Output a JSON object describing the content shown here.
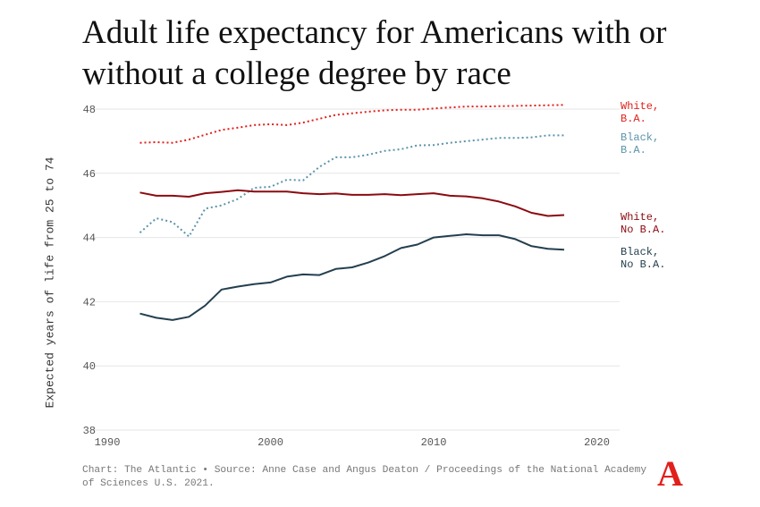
{
  "chart_data": {
    "type": "line",
    "title": "Adult life expectancy for Americans with or without a college degree by race",
    "xlabel": "",
    "ylabel": "Expected years of life from 25 to 74",
    "xlim": [
      1988,
      2021.5
    ],
    "ylim": [
      38,
      48
    ],
    "xticks": [
      1990,
      2000,
      2010,
      2020
    ],
    "yticks": [
      38,
      40,
      42,
      44,
      46,
      48
    ],
    "grid": true,
    "legend": "direct labels at right",
    "x": [
      1992,
      1993,
      1994,
      1995,
      1996,
      1997,
      1998,
      1999,
      2000,
      2001,
      2002,
      2003,
      2004,
      2005,
      2006,
      2007,
      2008,
      2009,
      2010,
      2011,
      2012,
      2013,
      2014,
      2015,
      2016,
      2017,
      2018
    ],
    "series": [
      {
        "name": "White, B.A.",
        "label_lines": [
          "White,",
          "B.A."
        ],
        "color": "#e0201c",
        "style": "dotted",
        "values": [
          46.95,
          46.97,
          46.95,
          47.05,
          47.2,
          47.35,
          47.42,
          47.5,
          47.53,
          47.5,
          47.58,
          47.7,
          47.82,
          47.87,
          47.92,
          47.96,
          47.98,
          47.98,
          48.02,
          48.05,
          48.08,
          48.08,
          48.09,
          48.1,
          48.11,
          48.12,
          48.13
        ]
      },
      {
        "name": "Black, B.A.",
        "label_lines": [
          "Black,",
          "B.A."
        ],
        "color": "#5b94ab",
        "style": "dotted",
        "values": [
          44.15,
          44.6,
          44.48,
          44.03,
          44.9,
          45.0,
          45.2,
          45.55,
          45.58,
          45.8,
          45.78,
          46.2,
          46.5,
          46.5,
          46.58,
          46.7,
          46.75,
          46.87,
          46.88,
          46.95,
          47.0,
          47.05,
          47.1,
          47.1,
          47.12,
          47.18,
          47.18
        ]
      },
      {
        "name": "White, No B.A.",
        "label_lines": [
          "White,",
          "No B.A."
        ],
        "color": "#8b0a10",
        "style": "solid",
        "values": [
          45.4,
          45.3,
          45.3,
          45.27,
          45.38,
          45.42,
          45.47,
          45.43,
          45.43,
          45.43,
          45.38,
          45.35,
          45.37,
          45.33,
          45.33,
          45.35,
          45.32,
          45.35,
          45.38,
          45.3,
          45.28,
          45.22,
          45.12,
          44.97,
          44.77,
          44.67,
          44.7
        ]
      },
      {
        "name": "Black, No B.A.",
        "label_lines": [
          "Black,",
          "No B.A."
        ],
        "color": "#243f4f",
        "style": "solid",
        "values": [
          41.63,
          41.5,
          41.43,
          41.53,
          41.88,
          42.38,
          42.47,
          42.55,
          42.6,
          42.78,
          42.85,
          42.83,
          43.02,
          43.07,
          43.22,
          43.42,
          43.67,
          43.78,
          44.0,
          44.05,
          44.1,
          44.07,
          44.07,
          43.95,
          43.73,
          43.65,
          43.62
        ]
      }
    ]
  },
  "footer": {
    "source": "Chart: The Atlantic • Source: Anne Case and Angus Deaton / Proceedings of the National Academy of Sciences U.S. 2021."
  },
  "logo": {
    "text": "A",
    "color": "#e0201c"
  }
}
